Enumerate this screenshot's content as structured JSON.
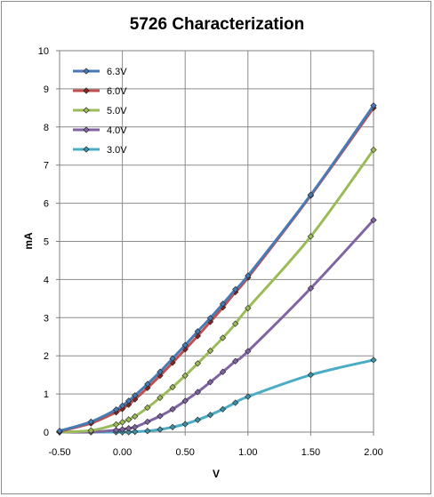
{
  "chart_data": {
    "type": "line",
    "title": "5726 Characterization",
    "xlabel": "V",
    "ylabel": "mA",
    "xlim": [
      -0.5,
      2.0
    ],
    "ylim": [
      0,
      10
    ],
    "xticks": [
      -0.5,
      0.0,
      0.5,
      1.0,
      1.5,
      2.0
    ],
    "xtick_labels": [
      "-0.50",
      "0.00",
      "0.50",
      "1.00",
      "1.50",
      "2.00"
    ],
    "yticks": [
      0,
      1,
      2,
      3,
      4,
      5,
      6,
      7,
      8,
      9,
      10
    ],
    "ytick_labels": [
      "0",
      "1",
      "2",
      "3",
      "4",
      "5",
      "6",
      "7",
      "8",
      "9",
      "10"
    ],
    "grid": true,
    "legend_position": "top-left",
    "series": [
      {
        "name": "6.3V",
        "color": "#4a7ab4",
        "marker_color": "#4a7ab4",
        "x": [
          -0.5,
          -0.25,
          -0.05,
          0.0,
          0.05,
          0.1,
          0.2,
          0.3,
          0.4,
          0.5,
          0.6,
          0.7,
          0.8,
          0.9,
          1.0,
          1.5,
          2.0
        ],
        "y": [
          0.03,
          0.27,
          0.59,
          0.69,
          0.82,
          0.96,
          1.26,
          1.58,
          1.93,
          2.28,
          2.64,
          2.99,
          3.36,
          3.74,
          4.1,
          6.22,
          8.56
        ]
      },
      {
        "name": "6.0V",
        "color": "#c0504d",
        "marker_color": "#8b2523",
        "x": [
          -0.5,
          -0.25,
          -0.05,
          0.0,
          0.05,
          0.1,
          0.2,
          0.3,
          0.4,
          0.5,
          0.6,
          0.7,
          0.8,
          0.9,
          1.0,
          1.5,
          2.0
        ],
        "y": [
          0.02,
          0.23,
          0.52,
          0.61,
          0.72,
          0.86,
          1.16,
          1.48,
          1.82,
          2.17,
          2.52,
          2.89,
          3.27,
          3.67,
          4.05,
          6.2,
          8.5
        ]
      },
      {
        "name": "5.0V",
        "color": "#9bbb59",
        "marker_color": "#9bbb59",
        "x": [
          -0.5,
          -0.25,
          -0.05,
          0.0,
          0.05,
          0.1,
          0.2,
          0.3,
          0.4,
          0.5,
          0.6,
          0.7,
          0.8,
          0.9,
          1.0,
          1.5,
          2.0
        ],
        "y": [
          0.0,
          0.04,
          0.2,
          0.26,
          0.33,
          0.41,
          0.64,
          0.9,
          1.18,
          1.48,
          1.8,
          2.13,
          2.47,
          2.84,
          3.25,
          5.13,
          7.4
        ]
      },
      {
        "name": "4.0V",
        "color": "#8064a2",
        "marker_color": "#8064a2",
        "x": [
          -0.5,
          -0.25,
          -0.05,
          0.0,
          0.05,
          0.1,
          0.2,
          0.3,
          0.4,
          0.5,
          0.6,
          0.7,
          0.8,
          0.9,
          1.0,
          1.5,
          2.0
        ],
        "y": [
          0.0,
          0.0,
          0.05,
          0.07,
          0.1,
          0.13,
          0.27,
          0.42,
          0.6,
          0.82,
          1.05,
          1.31,
          1.58,
          1.86,
          2.12,
          3.77,
          5.56
        ]
      },
      {
        "name": "3.0V",
        "color": "#4bacc6",
        "marker_color": "#3f8fa3",
        "x": [
          -0.5,
          -0.25,
          -0.05,
          0.0,
          0.05,
          0.1,
          0.2,
          0.3,
          0.4,
          0.5,
          0.6,
          0.7,
          0.8,
          0.9,
          1.0,
          1.5,
          2.0
        ],
        "y": [
          0.0,
          0.0,
          0.0,
          0.0,
          0.0,
          0.01,
          0.03,
          0.07,
          0.13,
          0.21,
          0.32,
          0.45,
          0.6,
          0.77,
          0.93,
          1.5,
          1.89
        ]
      }
    ]
  }
}
